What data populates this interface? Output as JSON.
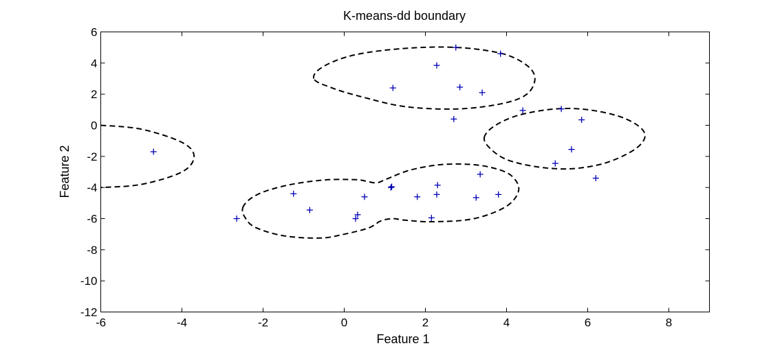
{
  "chart_data": {
    "type": "scatter",
    "title": "K-means-dd boundary",
    "xlabel": "Feature 1",
    "ylabel": "Feature 2",
    "xlim": [
      -6,
      9
    ],
    "ylim": [
      -12,
      6
    ],
    "xticks": [
      -6,
      -4,
      -2,
      0,
      2,
      4,
      6,
      8
    ],
    "yticks": [
      -12,
      -10,
      -8,
      -6,
      -4,
      -2,
      0,
      2,
      4,
      6
    ],
    "grid": false,
    "legend": "none",
    "marker": "+",
    "marker_color": "#0000b4",
    "boundary_color": "#000000",
    "boundary_style": "dashed",
    "points": [
      {
        "x": -4.7,
        "y": -1.7
      },
      {
        "x": -2.65,
        "y": -6.0
      },
      {
        "x": -1.25,
        "y": -4.4
      },
      {
        "x": -0.85,
        "y": -5.45
      },
      {
        "x": 0.28,
        "y": -6.0
      },
      {
        "x": 0.33,
        "y": -5.75
      },
      {
        "x": 0.5,
        "y": -4.6
      },
      {
        "x": 1.15,
        "y": -4.0
      },
      {
        "x": 1.17,
        "y": -3.95
      },
      {
        "x": 1.8,
        "y": -4.6
      },
      {
        "x": 2.15,
        "y": -5.95
      },
      {
        "x": 2.28,
        "y": -4.45
      },
      {
        "x": 2.3,
        "y": -3.85
      },
      {
        "x": 3.25,
        "y": -4.65
      },
      {
        "x": 3.35,
        "y": -3.15
      },
      {
        "x": 3.8,
        "y": -4.45
      },
      {
        "x": 1.2,
        "y": 2.4
      },
      {
        "x": 2.28,
        "y": 3.85
      },
      {
        "x": 2.75,
        "y": 5.0
      },
      {
        "x": 2.85,
        "y": 2.45
      },
      {
        "x": 3.4,
        "y": 2.1
      },
      {
        "x": 3.85,
        "y": 4.6
      },
      {
        "x": 2.7,
        "y": 0.4
      },
      {
        "x": 4.4,
        "y": 0.95
      },
      {
        "x": 5.35,
        "y": 1.05
      },
      {
        "x": 5.85,
        "y": 0.35
      },
      {
        "x": 5.6,
        "y": -1.55
      },
      {
        "x": 5.2,
        "y": -2.45
      },
      {
        "x": 6.2,
        "y": -3.4
      }
    ],
    "boundaries": [
      {
        "name": "left",
        "path": [
          [
            -6.0,
            0.0
          ],
          [
            -5.0,
            -0.25
          ],
          [
            -4.0,
            -1.1
          ],
          [
            -3.7,
            -2.0
          ],
          [
            -4.0,
            -3.0
          ],
          [
            -5.0,
            -3.8
          ],
          [
            -6.0,
            -4.0
          ]
        ],
        "closed": false
      },
      {
        "name": "top",
        "path": [
          [
            -0.75,
            3.0
          ],
          [
            -0.5,
            3.8
          ],
          [
            0.3,
            4.55
          ],
          [
            1.55,
            4.95
          ],
          [
            2.8,
            5.0
          ],
          [
            3.9,
            4.6
          ],
          [
            4.5,
            3.85
          ],
          [
            4.7,
            3.0
          ],
          [
            4.5,
            2.0
          ],
          [
            3.9,
            1.4
          ],
          [
            2.8,
            1.05
          ],
          [
            1.5,
            1.2
          ],
          [
            0.4,
            1.85
          ],
          [
            -0.3,
            2.4
          ],
          [
            -0.75,
            3.0
          ]
        ],
        "closed": true
      },
      {
        "name": "right",
        "path": [
          [
            3.45,
            -0.8
          ],
          [
            3.7,
            -0.05
          ],
          [
            4.3,
            0.65
          ],
          [
            5.2,
            1.05
          ],
          [
            6.0,
            1.0
          ],
          [
            6.8,
            0.55
          ],
          [
            7.3,
            -0.15
          ],
          [
            7.4,
            -0.85
          ],
          [
            7.1,
            -1.65
          ],
          [
            6.4,
            -2.45
          ],
          [
            5.55,
            -2.8
          ],
          [
            4.7,
            -2.65
          ],
          [
            4.0,
            -2.2
          ],
          [
            3.6,
            -1.5
          ],
          [
            3.45,
            -0.8
          ]
        ],
        "closed": true
      },
      {
        "name": "bottom",
        "path": [
          [
            -2.5,
            -5.3
          ],
          [
            -2.3,
            -4.7
          ],
          [
            -1.9,
            -4.2
          ],
          [
            -1.2,
            -3.75
          ],
          [
            -0.4,
            -3.5
          ],
          [
            0.3,
            -3.5
          ],
          [
            0.55,
            -3.6
          ],
          [
            0.8,
            -3.7
          ],
          [
            1.05,
            -3.45
          ],
          [
            1.6,
            -2.9
          ],
          [
            2.3,
            -2.55
          ],
          [
            3.0,
            -2.5
          ],
          [
            3.6,
            -2.7
          ],
          [
            4.1,
            -3.2
          ],
          [
            4.3,
            -4.15
          ],
          [
            4.0,
            -5.2
          ],
          [
            3.2,
            -6.0
          ],
          [
            2.2,
            -6.2
          ],
          [
            1.5,
            -6.1
          ],
          [
            1.2,
            -6.0
          ],
          [
            0.9,
            -6.15
          ],
          [
            0.6,
            -6.6
          ],
          [
            0.0,
            -7.0
          ],
          [
            -0.6,
            -7.25
          ],
          [
            -1.5,
            -7.1
          ],
          [
            -2.2,
            -6.55
          ],
          [
            -2.45,
            -5.9
          ],
          [
            -2.5,
            -5.3
          ]
        ],
        "closed": true
      }
    ]
  }
}
